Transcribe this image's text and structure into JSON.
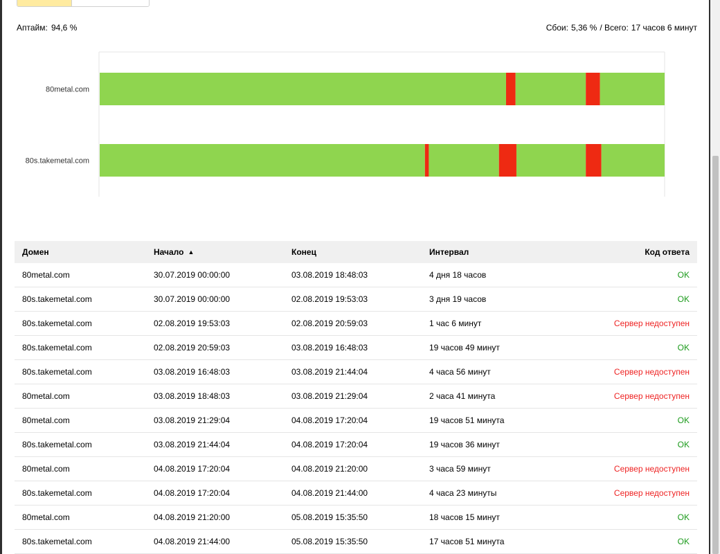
{
  "segment_control": {
    "active": "",
    "inactive": ""
  },
  "summary": {
    "uptime_label": "Аптайм:",
    "uptime_value": "94,6 %",
    "failures_label": "Сбои:",
    "failures_value": "5,36 %",
    "total_label": "/ Всего:",
    "total_value": "17 часов 6 минут"
  },
  "colors": {
    "up": "#8fd54f",
    "down": "#ee2a12",
    "ok_text": "#1a9a1a",
    "fail_text": "#ee2222"
  },
  "chart_data": {
    "type": "bar",
    "orientation": "horizontal",
    "title": "",
    "categories": [
      "80metal.com",
      "80s.takemetal.com"
    ],
    "x_start": "30.07.2019 00:00:00",
    "x_end": "05.08.2019 15:35:50",
    "series": [
      {
        "domain": "80metal.com",
        "segments": [
          {
            "start": "30.07.2019 00:00:00",
            "end": "03.08.2019 18:48:03",
            "status": "up"
          },
          {
            "start": "03.08.2019 18:48:03",
            "end": "03.08.2019 21:29:04",
            "status": "down"
          },
          {
            "start": "03.08.2019 21:29:04",
            "end": "04.08.2019 17:20:04",
            "status": "up"
          },
          {
            "start": "04.08.2019 17:20:04",
            "end": "04.08.2019 21:20:00",
            "status": "down"
          },
          {
            "start": "04.08.2019 21:20:00",
            "end": "05.08.2019 15:35:50",
            "status": "up"
          }
        ]
      },
      {
        "domain": "80s.takemetal.com",
        "segments": [
          {
            "start": "30.07.2019 00:00:00",
            "end": "02.08.2019 19:53:03",
            "status": "up"
          },
          {
            "start": "02.08.2019 19:53:03",
            "end": "02.08.2019 20:59:03",
            "status": "down"
          },
          {
            "start": "02.08.2019 20:59:03",
            "end": "03.08.2019 16:48:03",
            "status": "up"
          },
          {
            "start": "03.08.2019 16:48:03",
            "end": "03.08.2019 21:44:04",
            "status": "down"
          },
          {
            "start": "03.08.2019 21:44:04",
            "end": "04.08.2019 17:20:04",
            "status": "up"
          },
          {
            "start": "04.08.2019 17:20:04",
            "end": "04.08.2019 21:44:00",
            "status": "down"
          },
          {
            "start": "04.08.2019 21:44:00",
            "end": "05.08.2019 15:35:50",
            "status": "up"
          }
        ]
      }
    ]
  },
  "table": {
    "headers": {
      "domain": "Домен",
      "start": "Начало",
      "end": "Конец",
      "interval": "Интервал",
      "code": "Код ответа"
    },
    "sort_arrow": "▲",
    "rows": [
      {
        "domain": "80metal.com",
        "start": "30.07.2019 00:00:00",
        "end": "03.08.2019 18:48:03",
        "interval": "4 дня 18 часов",
        "code": "OK",
        "ok": true
      },
      {
        "domain": "80s.takemetal.com",
        "start": "30.07.2019 00:00:00",
        "end": "02.08.2019 19:53:03",
        "interval": "3 дня 19 часов",
        "code": "OK",
        "ok": true
      },
      {
        "domain": "80s.takemetal.com",
        "start": "02.08.2019 19:53:03",
        "end": "02.08.2019 20:59:03",
        "interval": "1 час 6 минут",
        "code": "Сервер недоступен",
        "ok": false
      },
      {
        "domain": "80s.takemetal.com",
        "start": "02.08.2019 20:59:03",
        "end": "03.08.2019 16:48:03",
        "interval": "19 часов 49 минут",
        "code": "OK",
        "ok": true
      },
      {
        "domain": "80s.takemetal.com",
        "start": "03.08.2019 16:48:03",
        "end": "03.08.2019 21:44:04",
        "interval": "4 часа 56 минут",
        "code": "Сервер недоступен",
        "ok": false
      },
      {
        "domain": "80metal.com",
        "start": "03.08.2019 18:48:03",
        "end": "03.08.2019 21:29:04",
        "interval": "2 часа 41 минута",
        "code": "Сервер недоступен",
        "ok": false
      },
      {
        "domain": "80metal.com",
        "start": "03.08.2019 21:29:04",
        "end": "04.08.2019 17:20:04",
        "interval": "19 часов 51 минута",
        "code": "OK",
        "ok": true
      },
      {
        "domain": "80s.takemetal.com",
        "start": "03.08.2019 21:44:04",
        "end": "04.08.2019 17:20:04",
        "interval": "19 часов 36 минут",
        "code": "OK",
        "ok": true
      },
      {
        "domain": "80metal.com",
        "start": "04.08.2019 17:20:04",
        "end": "04.08.2019 21:20:00",
        "interval": "3 часа 59 минут",
        "code": "Сервер недоступен",
        "ok": false
      },
      {
        "domain": "80s.takemetal.com",
        "start": "04.08.2019 17:20:04",
        "end": "04.08.2019 21:44:00",
        "interval": "4 часа 23 минуты",
        "code": "Сервер недоступен",
        "ok": false
      },
      {
        "domain": "80metal.com",
        "start": "04.08.2019 21:20:00",
        "end": "05.08.2019 15:35:50",
        "interval": "18 часов 15 минут",
        "code": "OK",
        "ok": true
      },
      {
        "domain": "80s.takemetal.com",
        "start": "04.08.2019 21:44:00",
        "end": "05.08.2019 15:35:50",
        "interval": "17 часов 51 минута",
        "code": "OK",
        "ok": true
      }
    ]
  }
}
